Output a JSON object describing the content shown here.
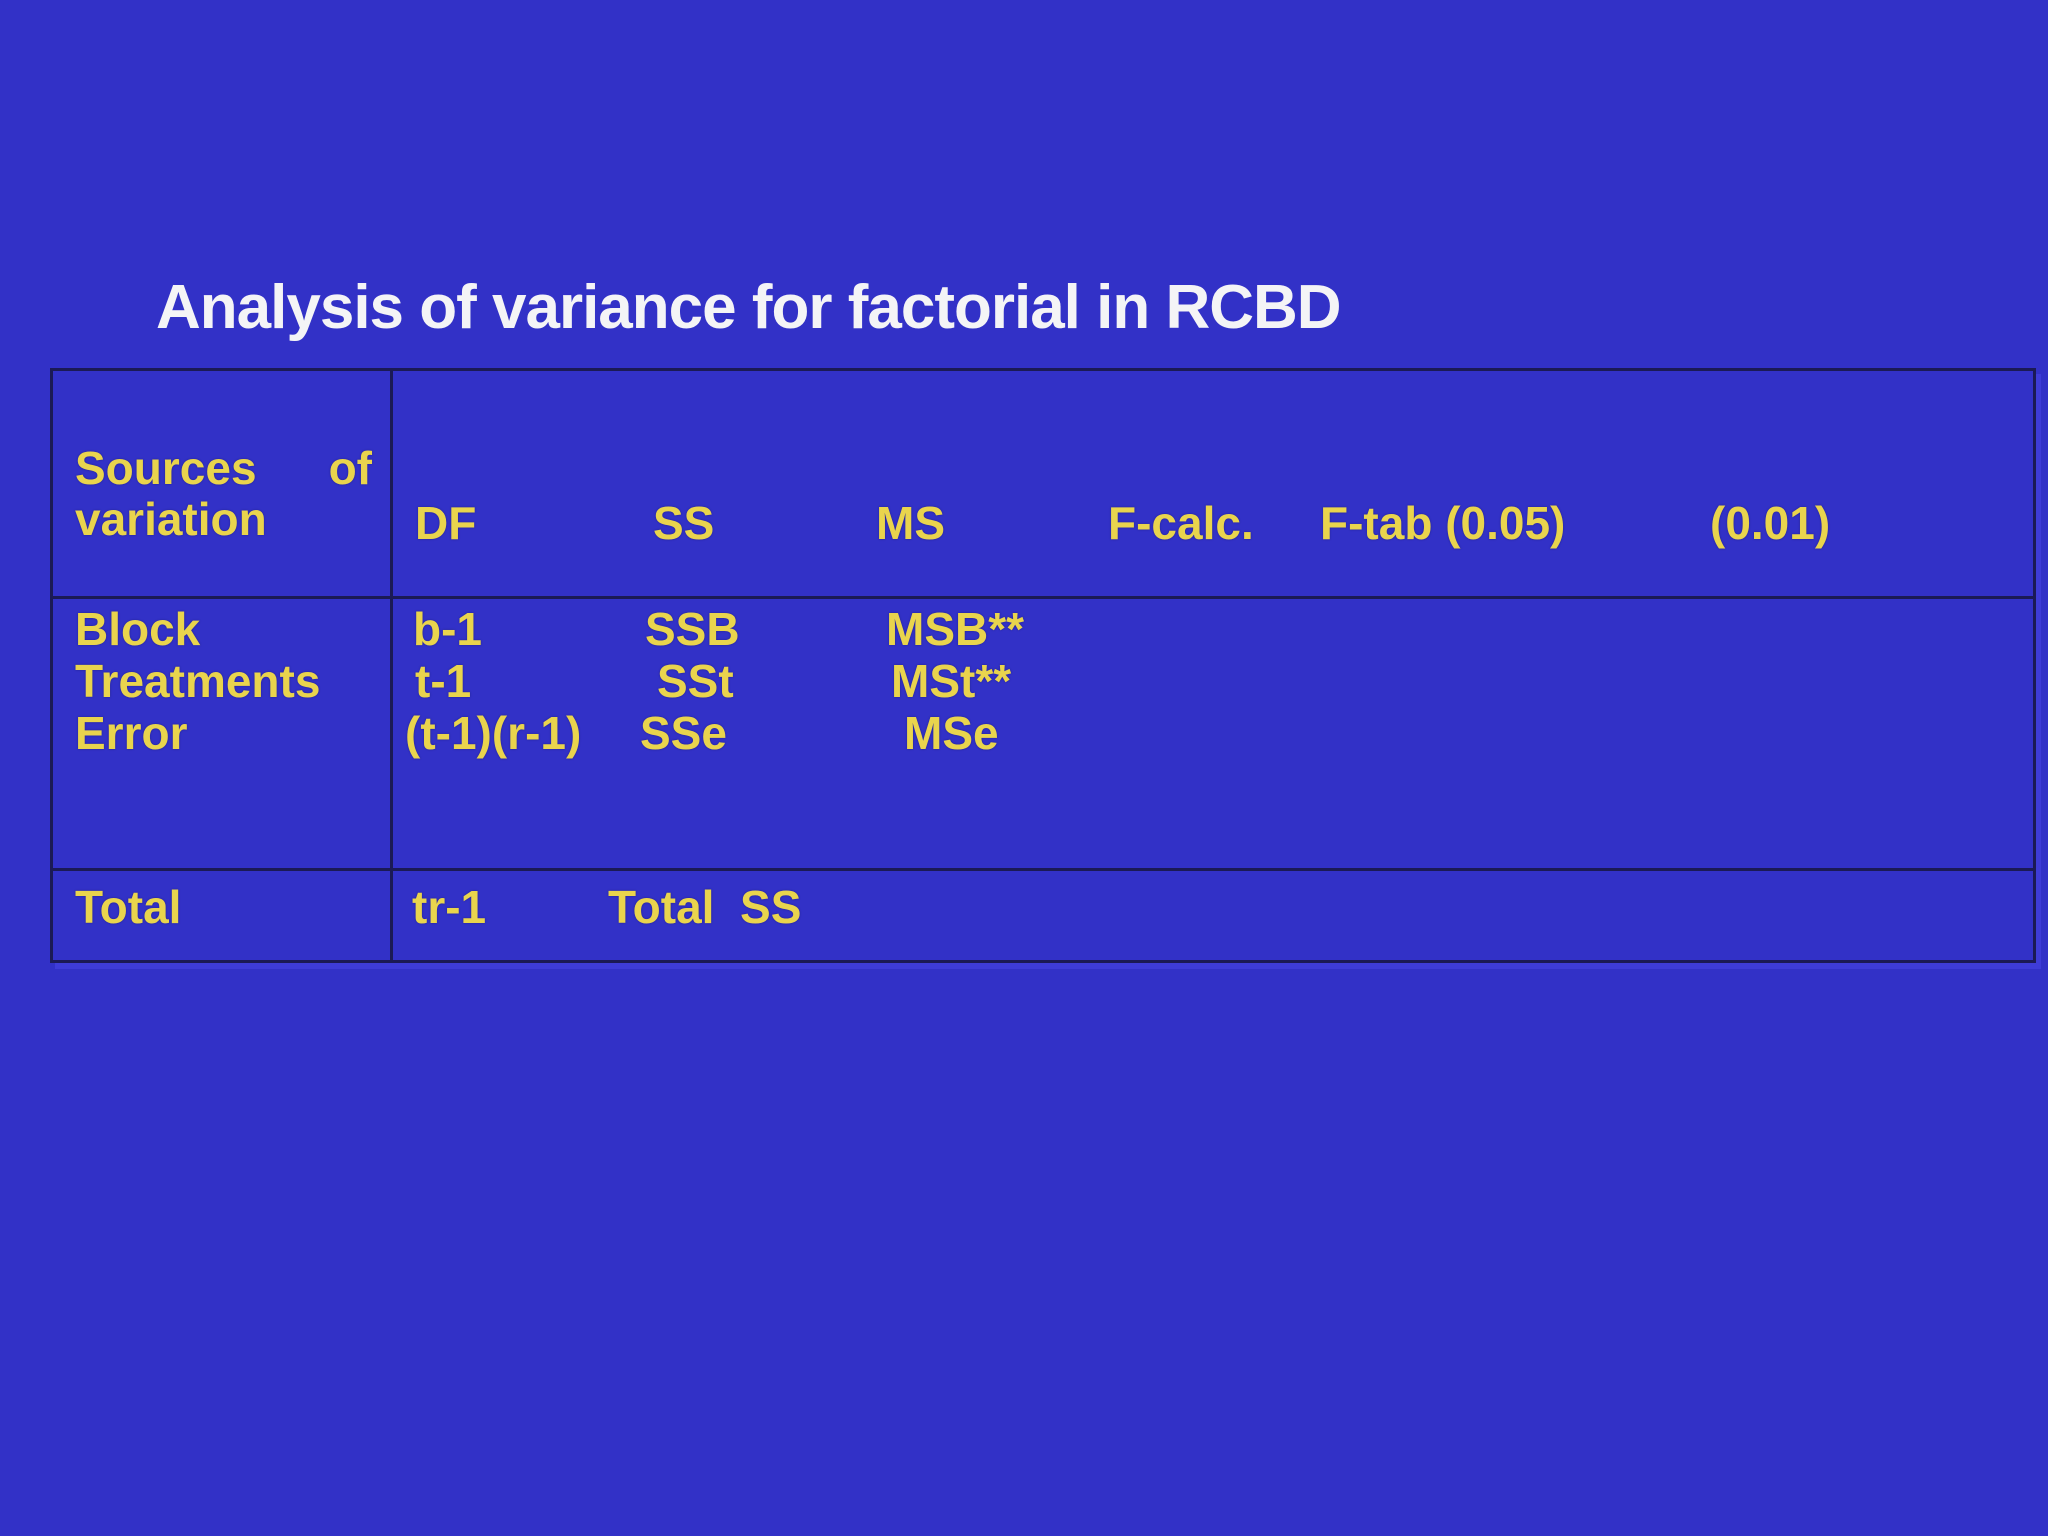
{
  "slide": {
    "title": "Analysis of variance for factorial in RCBD",
    "colors": {
      "background": "#3231c7",
      "table_border": "#1b1a55",
      "table_text_yellow": "#e9d44d",
      "title_white": "#f4f4f6",
      "bevel_highlight": "#4846e6"
    },
    "table": {
      "header": {
        "col1_words": [
          "Sources",
          "of"
        ],
        "col1_line2": "variation",
        "columns": [
          "DF",
          "SS",
          "MS",
          "F-calc.",
          "F-tab (0.05)",
          "(0.01)"
        ]
      },
      "rows": [
        {
          "source": "Block",
          "df": "b-1",
          "ss": "SSB",
          "ms": "MSB**"
        },
        {
          "source": "Treatments",
          "df": "t-1",
          "ss": "SSt",
          "ms": "MSt**"
        },
        {
          "source": "Error",
          "df": "(t-1)(r-1)",
          "ss": "SSe",
          "ms": "MSe"
        }
      ],
      "total": {
        "source": "Total",
        "df": "tr-1",
        "ss": "Total  SS"
      }
    }
  }
}
